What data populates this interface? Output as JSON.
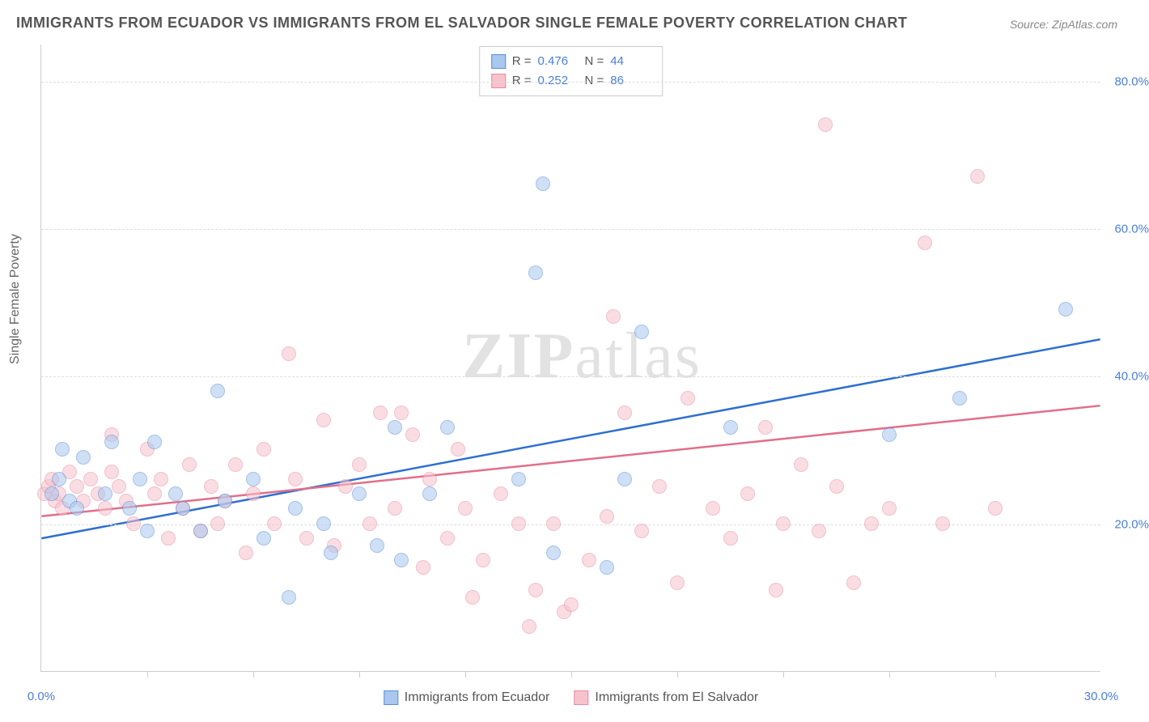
{
  "title": "IMMIGRANTS FROM ECUADOR VS IMMIGRANTS FROM EL SALVADOR SINGLE FEMALE POVERTY CORRELATION CHART",
  "source": "Source: ZipAtlas.com",
  "ylabel": "Single Female Poverty",
  "watermark_a": "ZIP",
  "watermark_b": "atlas",
  "chart": {
    "type": "scatter",
    "xlim": [
      0,
      30
    ],
    "ylim": [
      0,
      85
    ],
    "xticks": [
      0,
      30
    ],
    "xtick_labels": [
      "0.0%",
      "30.0%"
    ],
    "xtick_minor": [
      3,
      6,
      9,
      12,
      15,
      18,
      21,
      24,
      27
    ],
    "yticks": [
      20,
      40,
      60,
      80
    ],
    "ytick_labels": [
      "20.0%",
      "40.0%",
      "60.0%",
      "80.0%"
    ],
    "background_color": "#ffffff",
    "grid_color": "#dddddd",
    "axis_color": "#cccccc",
    "marker_radius": 9,
    "marker_opacity": 0.55,
    "series": [
      {
        "name": "Immigrants from Ecuador",
        "fill": "#a9c7ef",
        "stroke": "#5b8fd6",
        "trend_color": "#2e6fd0",
        "R": "0.476",
        "N": "44",
        "trend": {
          "x1": 0,
          "y1": 18,
          "x2": 30,
          "y2": 45
        },
        "points": [
          [
            0.3,
            24
          ],
          [
            0.5,
            26
          ],
          [
            0.8,
            23
          ],
          [
            0.6,
            30
          ],
          [
            1.0,
            22
          ],
          [
            1.2,
            29
          ],
          [
            1.8,
            24
          ],
          [
            2.0,
            31
          ],
          [
            2.5,
            22
          ],
          [
            2.8,
            26
          ],
          [
            3.0,
            19
          ],
          [
            3.2,
            31
          ],
          [
            3.8,
            24
          ],
          [
            4.0,
            22
          ],
          [
            4.5,
            19
          ],
          [
            5.0,
            38
          ],
          [
            5.2,
            23
          ],
          [
            6.0,
            26
          ],
          [
            6.3,
            18
          ],
          [
            7.0,
            10
          ],
          [
            7.2,
            22
          ],
          [
            8.0,
            20
          ],
          [
            8.2,
            16
          ],
          [
            9.0,
            24
          ],
          [
            9.5,
            17
          ],
          [
            10.0,
            33
          ],
          [
            10.2,
            15
          ],
          [
            11.0,
            24
          ],
          [
            11.5,
            33
          ],
          [
            13.5,
            26
          ],
          [
            14.0,
            54
          ],
          [
            14.2,
            66
          ],
          [
            14.5,
            16
          ],
          [
            16.0,
            14
          ],
          [
            16.5,
            26
          ],
          [
            17.0,
            46
          ],
          [
            19.5,
            33
          ],
          [
            24.0,
            32
          ],
          [
            26.0,
            37
          ],
          [
            29.0,
            49
          ]
        ]
      },
      {
        "name": "Immigrants from El Salvador",
        "fill": "#f6c3cd",
        "stroke": "#e88ba0",
        "trend_color": "#e06f8b",
        "R": "0.252",
        "N": "86",
        "trend": {
          "x1": 0,
          "y1": 21,
          "x2": 30,
          "y2": 36
        },
        "points": [
          [
            0.1,
            24
          ],
          [
            0.2,
            25
          ],
          [
            0.3,
            26
          ],
          [
            0.4,
            23
          ],
          [
            0.5,
            24
          ],
          [
            0.6,
            22
          ],
          [
            0.8,
            27
          ],
          [
            1.0,
            25
          ],
          [
            1.2,
            23
          ],
          [
            1.4,
            26
          ],
          [
            1.6,
            24
          ],
          [
            1.8,
            22
          ],
          [
            2.0,
            27
          ],
          [
            2.0,
            32
          ],
          [
            2.2,
            25
          ],
          [
            2.4,
            23
          ],
          [
            2.6,
            20
          ],
          [
            3.0,
            30
          ],
          [
            3.2,
            24
          ],
          [
            3.4,
            26
          ],
          [
            3.6,
            18
          ],
          [
            4.0,
            22
          ],
          [
            4.2,
            28
          ],
          [
            4.5,
            19
          ],
          [
            4.8,
            25
          ],
          [
            5.0,
            20
          ],
          [
            5.2,
            23
          ],
          [
            5.5,
            28
          ],
          [
            5.8,
            16
          ],
          [
            6.0,
            24
          ],
          [
            6.3,
            30
          ],
          [
            6.6,
            20
          ],
          [
            7.0,
            43
          ],
          [
            7.2,
            26
          ],
          [
            7.5,
            18
          ],
          [
            8.0,
            34
          ],
          [
            8.3,
            17
          ],
          [
            8.6,
            25
          ],
          [
            9.0,
            28
          ],
          [
            9.3,
            20
          ],
          [
            9.6,
            35
          ],
          [
            10.0,
            22
          ],
          [
            10.2,
            35
          ],
          [
            10.5,
            32
          ],
          [
            10.8,
            14
          ],
          [
            11.0,
            26
          ],
          [
            11.5,
            18
          ],
          [
            11.8,
            30
          ],
          [
            12.0,
            22
          ],
          [
            12.2,
            10
          ],
          [
            12.5,
            15
          ],
          [
            13.0,
            24
          ],
          [
            13.5,
            20
          ],
          [
            13.8,
            6
          ],
          [
            14.0,
            11
          ],
          [
            14.5,
            20
          ],
          [
            14.8,
            8
          ],
          [
            15.0,
            9
          ],
          [
            15.5,
            15
          ],
          [
            16.0,
            21
          ],
          [
            16.2,
            48
          ],
          [
            16.5,
            35
          ],
          [
            17.0,
            19
          ],
          [
            17.5,
            25
          ],
          [
            18.0,
            12
          ],
          [
            18.3,
            37
          ],
          [
            19.0,
            22
          ],
          [
            19.5,
            18
          ],
          [
            20.0,
            24
          ],
          [
            20.5,
            33
          ],
          [
            20.8,
            11
          ],
          [
            21.0,
            20
          ],
          [
            21.5,
            28
          ],
          [
            22.0,
            19
          ],
          [
            22.2,
            74
          ],
          [
            22.5,
            25
          ],
          [
            23.0,
            12
          ],
          [
            23.5,
            20
          ],
          [
            24.0,
            22
          ],
          [
            25.0,
            58
          ],
          [
            25.5,
            20
          ],
          [
            26.5,
            67
          ],
          [
            27.0,
            22
          ]
        ]
      }
    ]
  },
  "legend_top_rows": [
    {
      "swatch_fill": "#a9c7ef",
      "swatch_stroke": "#5b8fd6",
      "R": "0.476",
      "N": "44"
    },
    {
      "swatch_fill": "#f6c3cd",
      "swatch_stroke": "#e88ba0",
      "R": "0.252",
      "N": "86"
    }
  ],
  "legend_bottom": [
    {
      "swatch_fill": "#a9c7ef",
      "swatch_stroke": "#5b8fd6",
      "label": "Immigrants from Ecuador"
    },
    {
      "swatch_fill": "#f6c3cd",
      "swatch_stroke": "#e88ba0",
      "label": "Immigrants from El Salvador"
    }
  ]
}
